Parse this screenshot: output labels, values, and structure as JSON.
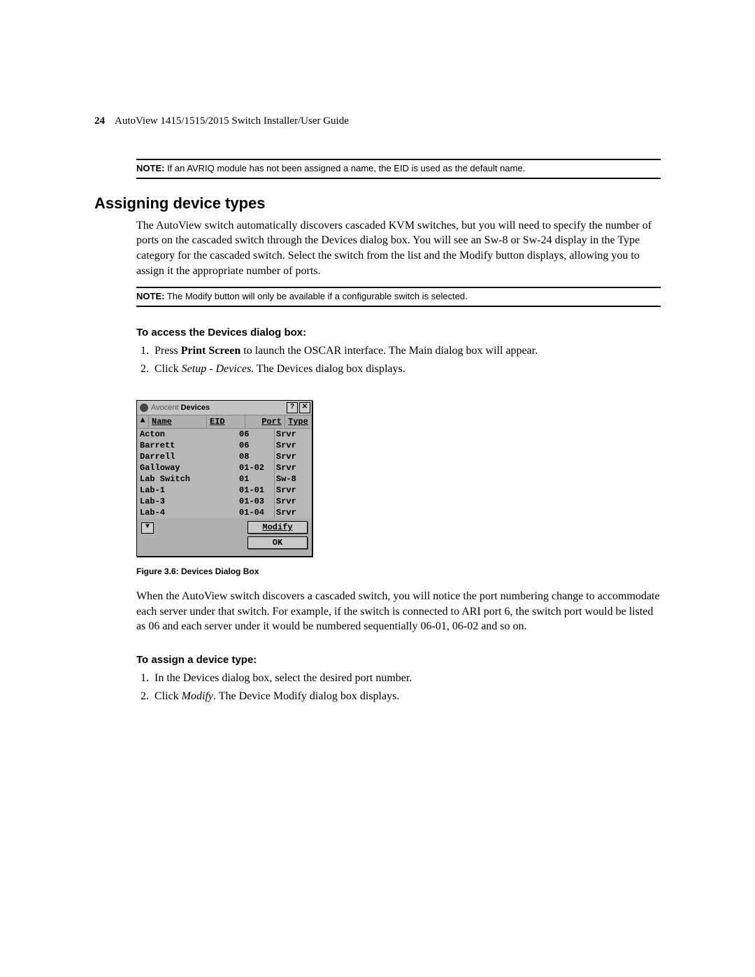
{
  "header": {
    "page_number": "24",
    "doc_title": "AutoView 1415/1515/2015 Switch Installer/User Guide"
  },
  "note1": {
    "label": "NOTE:",
    "text": " If an AVRIQ module has not been assigned a name, the EID is used as the default name."
  },
  "section_heading": "Assigning device types",
  "para1": "The AutoView switch automatically discovers cascaded KVM switches, but you will need to specify the number of ports on the cascaded switch through the Devices dialog box. You will see an Sw-8 or Sw-24 display in the Type category for the cascaded switch. Select the switch from the list and the Modify button displays, allowing you to assign it the appropriate number of ports.",
  "note2": {
    "label": "NOTE:",
    "text": " The Modify button will only be available if a configurable switch is selected."
  },
  "sub1": "To access the Devices dialog box:",
  "steps1": {
    "s1_pre": "Press ",
    "s1_bold": "Print Screen",
    "s1_post": " to launch the OSCAR interface. The Main dialog box will appear.",
    "s2_pre": "Click ",
    "s2_italic": "Setup - Devices.",
    "s2_post": " The Devices dialog box displays."
  },
  "dialog": {
    "brand": "Avocent",
    "title": "Devices",
    "help_btn": "?",
    "close_btn": "✕",
    "sort_up": "▲",
    "col_name": "Name",
    "col_eid": "EID",
    "col_port": "Port",
    "col_type": "Type",
    "rows": [
      {
        "name": "Acton",
        "port": "06",
        "type": "Srvr"
      },
      {
        "name": "Barrett",
        "port": "06",
        "type": "Srvr"
      },
      {
        "name": "Darrell",
        "port": "08",
        "type": "Srvr"
      },
      {
        "name": "Galloway",
        "port": "01-02",
        "type": "Srvr"
      },
      {
        "name": "Lab Switch",
        "port": "01",
        "type": "Sw-8"
      },
      {
        "name": "Lab-1",
        "port": "01-01",
        "type": "Srvr"
      },
      {
        "name": "Lab-3",
        "port": "01-03",
        "type": "Srvr"
      },
      {
        "name": "Lab-4",
        "port": "01-04",
        "type": "Srvr"
      }
    ],
    "scroll_down": "▼",
    "modify_btn": "Modify",
    "ok_btn": "OK"
  },
  "fig_caption": "Figure 3.6: Devices Dialog Box",
  "para2": "When the AutoView switch discovers a cascaded switch, you will notice the port numbering change to accommodate each server under that switch. For example, if the switch is connected to ARI port 6, the switch port would be listed as 06 and each server under it would be numbered sequentially 06-01, 06-02 and so on.",
  "sub2": "To assign a device type:",
  "steps2": {
    "s1": "In the Devices dialog box, select the desired port number.",
    "s2_pre": "Click ",
    "s2_italic": "Modify",
    "s2_post": ". The Device Modify dialog box displays."
  }
}
